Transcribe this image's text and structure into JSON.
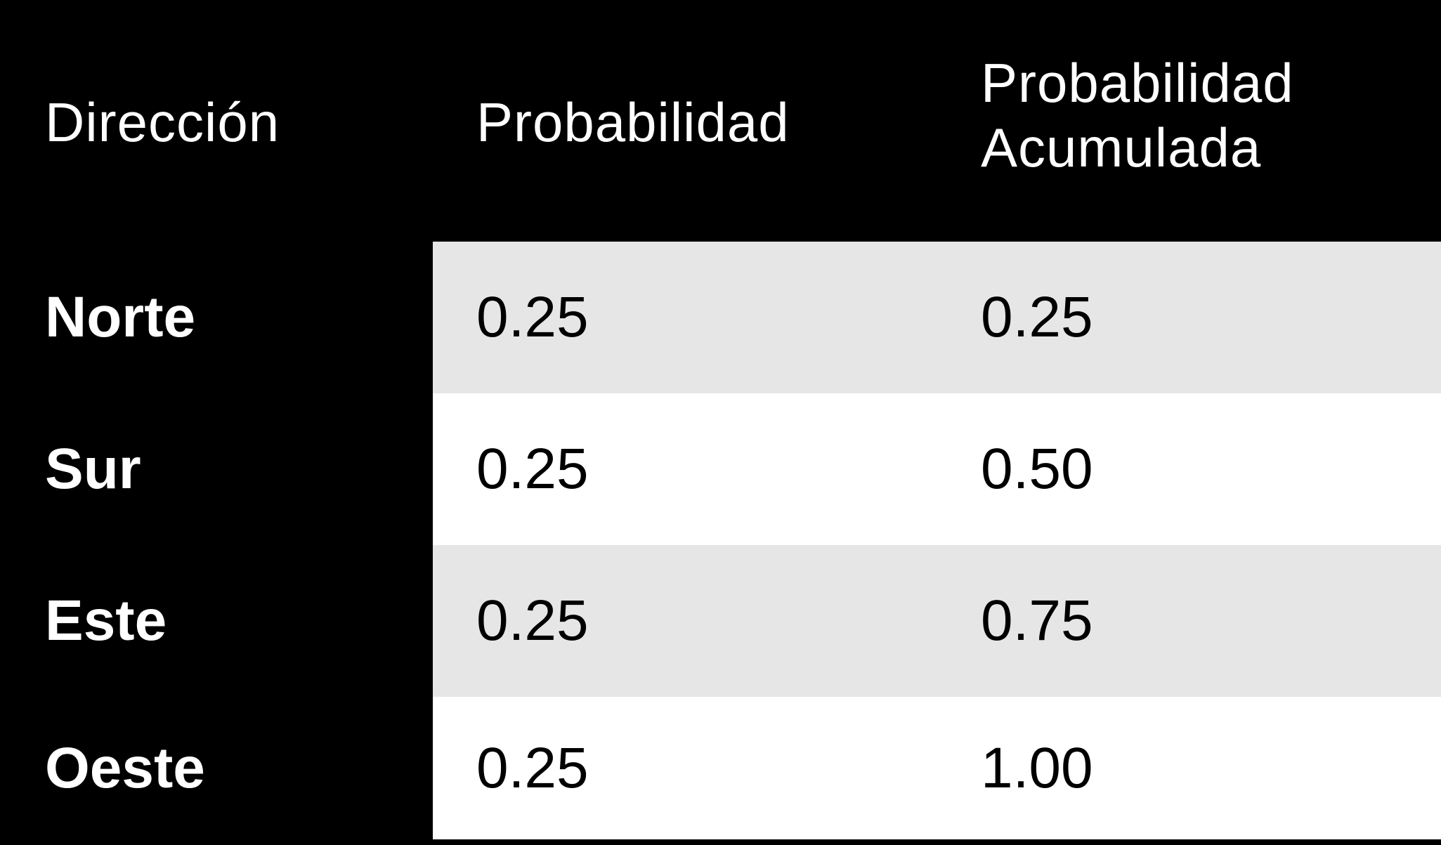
{
  "table": {
    "headers": [
      "Dirección",
      "Probabilidad",
      "Probabilidad Acumulada"
    ],
    "header_col3_lines": [
      "Probabilidad",
      "Acumulada"
    ],
    "rows": [
      {
        "direccion": "Norte",
        "probabilidad": "0.25",
        "acumulada": "0.25"
      },
      {
        "direccion": "Sur",
        "probabilidad": "0.25",
        "acumulada": "0.50"
      },
      {
        "direccion": "Este",
        "probabilidad": "0.25",
        "acumulada": "0.75"
      },
      {
        "direccion": "Oeste",
        "probabilidad": "0.25",
        "acumulada": "1.00"
      }
    ]
  },
  "colors": {
    "header_background": "#000000",
    "header_text": "#ffffff",
    "row_shaded": "#e6e6e6",
    "row_plain": "#ffffff",
    "body_text": "#000000"
  }
}
